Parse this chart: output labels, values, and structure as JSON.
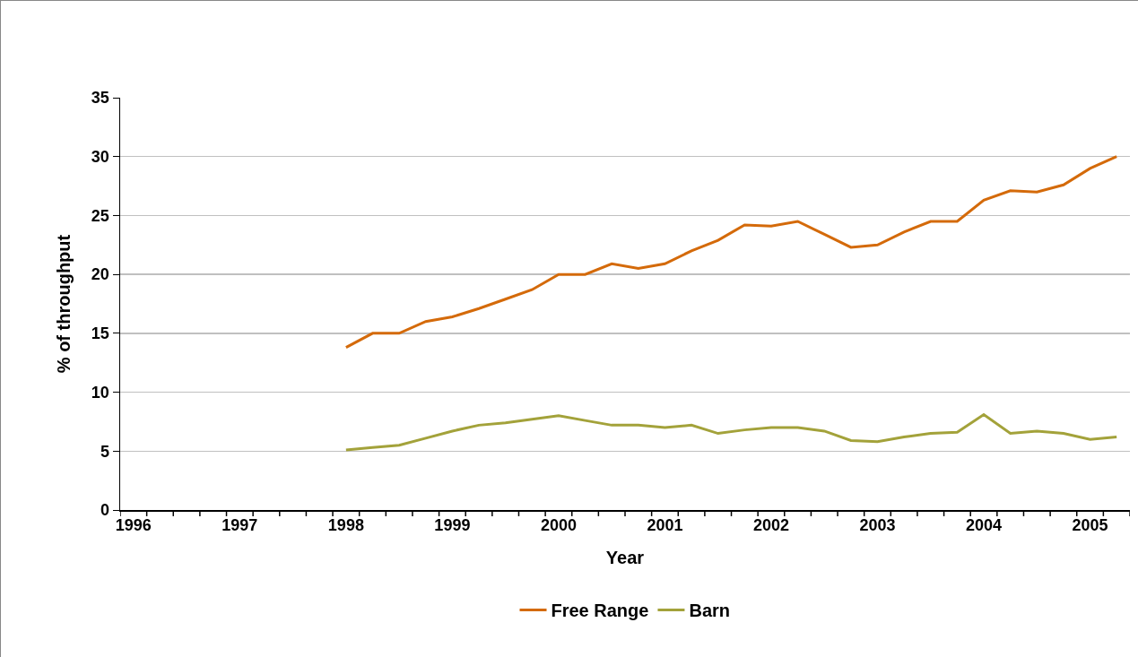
{
  "chart_data": {
    "type": "line",
    "xlabel": "Year",
    "ylabel": "% of throughput",
    "categories": [
      "1996",
      null,
      null,
      null,
      "1997",
      null,
      null,
      null,
      "1998",
      null,
      null,
      null,
      "1999",
      null,
      null,
      null,
      "2000",
      null,
      null,
      null,
      "2001",
      null,
      null,
      null,
      "2002",
      null,
      null,
      null,
      "2003",
      null,
      null,
      null,
      "2004",
      null,
      null,
      null,
      "2005",
      null
    ],
    "series": [
      {
        "name": "Free Range",
        "color": "#d46a0a",
        "values": [
          null,
          null,
          null,
          null,
          null,
          null,
          null,
          null,
          13.8,
          15.0,
          15.0,
          16.0,
          16.4,
          17.1,
          17.9,
          18.7,
          20.0,
          20.0,
          20.9,
          20.5,
          20.9,
          22.0,
          22.9,
          24.2,
          24.1,
          24.5,
          23.4,
          22.3,
          22.5,
          23.6,
          24.5,
          24.5,
          26.3,
          27.1,
          27.0,
          27.6,
          29.0,
          30.0
        ]
      },
      {
        "name": "Barn",
        "color": "#a3a23a",
        "values": [
          null,
          null,
          null,
          null,
          null,
          null,
          null,
          null,
          5.1,
          5.3,
          5.5,
          6.1,
          6.7,
          7.2,
          7.4,
          7.7,
          8.0,
          7.6,
          7.2,
          7.2,
          7.0,
          7.2,
          6.5,
          6.8,
          7.0,
          7.0,
          6.7,
          5.9,
          5.8,
          6.2,
          6.5,
          6.6,
          8.1,
          6.5,
          6.7,
          6.5,
          6.0,
          6.2
        ]
      }
    ],
    "ylim": [
      0,
      35
    ],
    "yticks": [
      0,
      5,
      10,
      15,
      20,
      25,
      30,
      35
    ],
    "grid": "y",
    "legend": "bottom",
    "marker": "none",
    "line_style": "solid"
  }
}
